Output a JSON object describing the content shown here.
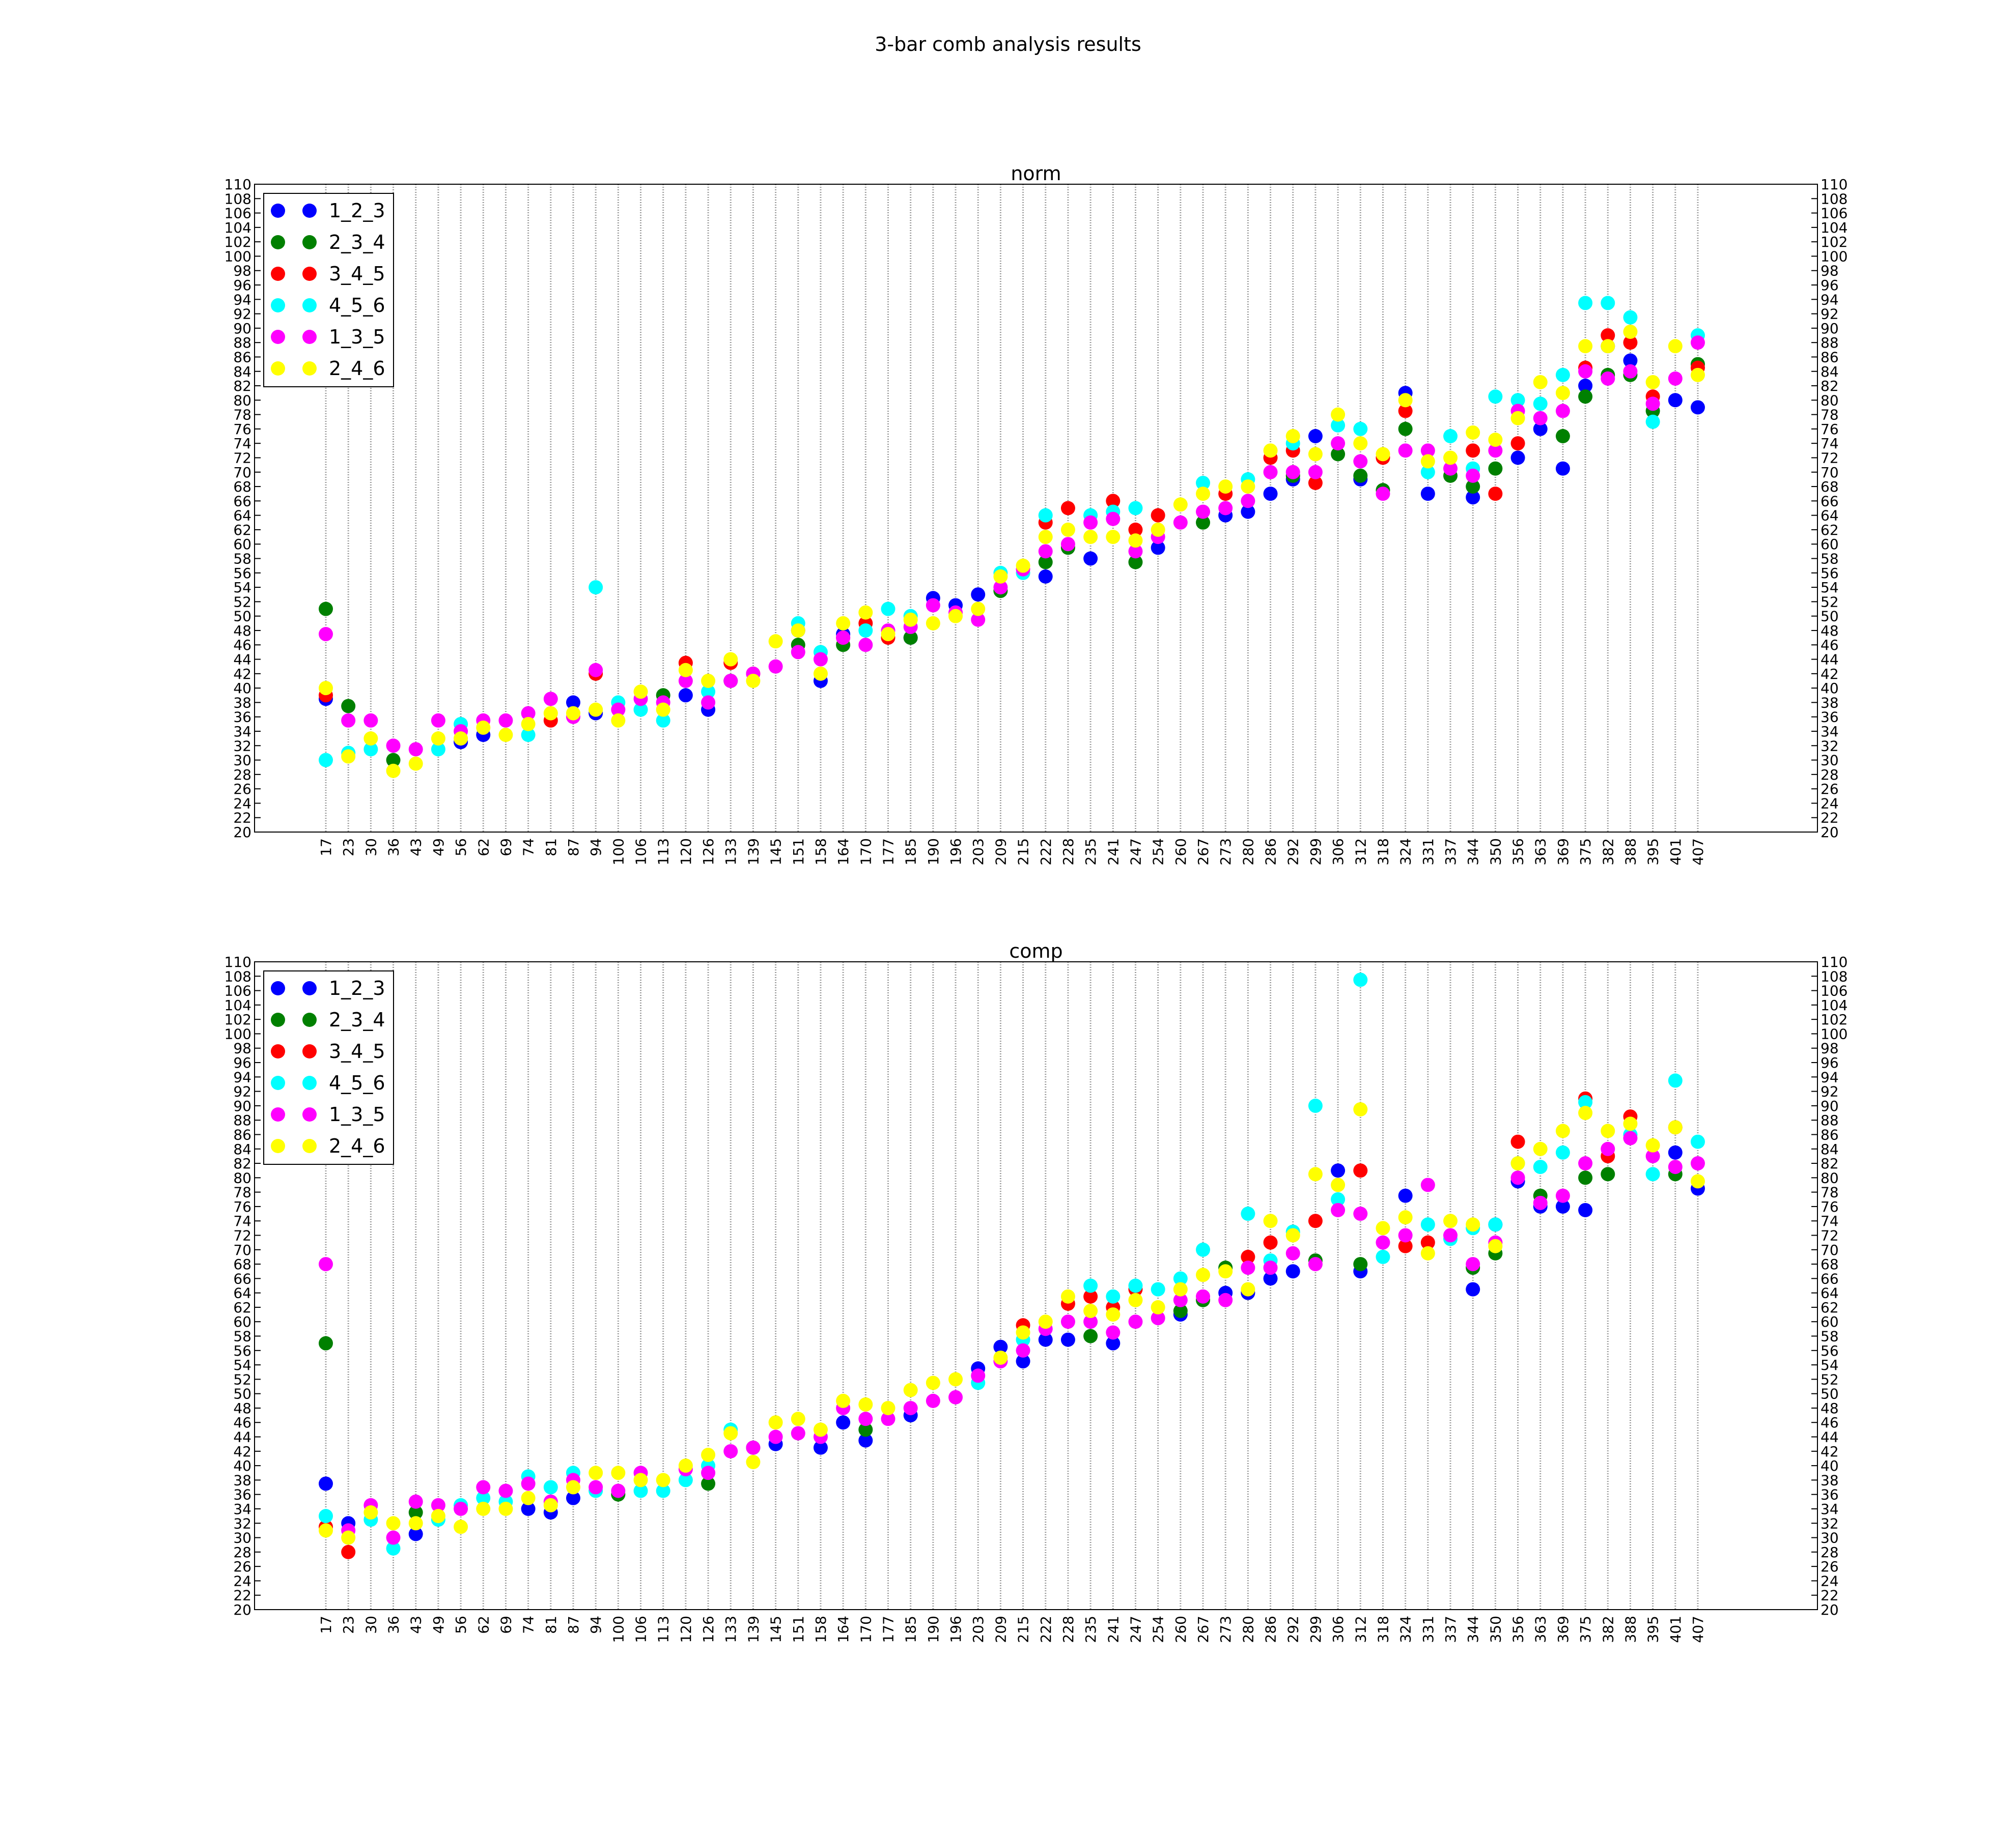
{
  "figure_title": "3-bar comb analysis results",
  "chart_data": [
    {
      "type": "scatter",
      "title": "norm",
      "xlabel": "",
      "ylabel": "",
      "ylim": [
        20,
        110
      ],
      "yticks_step": 2,
      "grid": "vertical lines at each category",
      "legend_position": "upper-left",
      "categories": [
        "17",
        "23",
        "30",
        "36",
        "43",
        "49",
        "56",
        "62",
        "69",
        "74",
        "81",
        "87",
        "94",
        "100",
        "106",
        "113",
        "120",
        "126",
        "133",
        "139",
        "145",
        "151",
        "158",
        "164",
        "170",
        "177",
        "185",
        "190",
        "196",
        "203",
        "209",
        "215",
        "222",
        "228",
        "235",
        "241",
        "247",
        "254",
        "260",
        "267",
        "273",
        "280",
        "286",
        "292",
        "299",
        "306",
        "312",
        "318",
        "324",
        "331",
        "337",
        "344",
        "350",
        "356",
        "363",
        "369",
        "375",
        "382",
        "388",
        "395",
        "401",
        "407"
      ],
      "series": [
        {
          "name": "1_2_3",
          "color": "#0000ff",
          "values": [
            38.5,
            null,
            null,
            null,
            null,
            null,
            32.5,
            33.5,
            null,
            null,
            null,
            38,
            36.5,
            null,
            null,
            null,
            39,
            37,
            null,
            null,
            null,
            48,
            41,
            47.5,
            null,
            null,
            47,
            52.5,
            51.5,
            53,
            null,
            null,
            55.5,
            null,
            58,
            null,
            null,
            59.5,
            null,
            null,
            64,
            64.5,
            67,
            69,
            75,
            null,
            69,
            null,
            81,
            67,
            null,
            66.5,
            null,
            72,
            76,
            70.5,
            82,
            87.5,
            85.5,
            null,
            80,
            79
          ]
        },
        {
          "name": "2_3_4",
          "color": "#008000",
          "values": [
            51,
            37.5,
            null,
            30,
            null,
            null,
            null,
            null,
            null,
            null,
            null,
            null,
            null,
            null,
            null,
            39,
            null,
            null,
            41,
            null,
            null,
            46,
            null,
            46,
            null,
            null,
            47,
            null,
            null,
            null,
            53.5,
            null,
            57.5,
            59.5,
            null,
            null,
            57.5,
            null,
            null,
            63,
            null,
            null,
            null,
            69.5,
            null,
            72.5,
            69.5,
            67.5,
            76,
            null,
            69.5,
            68,
            70.5,
            null,
            null,
            75,
            80.5,
            83.5,
            83.5,
            78.5,
            null,
            85
          ]
        },
        {
          "name": "3_4_5",
          "color": "#ff0000",
          "values": [
            39,
            null,
            null,
            null,
            null,
            null,
            null,
            null,
            null,
            null,
            35.5,
            null,
            42,
            null,
            null,
            null,
            43.5,
            null,
            43.5,
            42,
            null,
            null,
            null,
            47,
            49,
            47,
            null,
            null,
            null,
            null,
            null,
            null,
            63,
            65,
            null,
            66,
            62,
            64,
            null,
            null,
            67,
            null,
            72,
            73,
            68.5,
            null,
            null,
            72,
            78.5,
            null,
            null,
            73,
            67,
            74,
            null,
            null,
            84.5,
            89,
            88,
            80.5,
            null,
            84.5
          ]
        },
        {
          "name": "4_5_6",
          "color": "#00ffff",
          "values": [
            30,
            31,
            31.5,
            null,
            null,
            31.5,
            35,
            null,
            null,
            33.5,
            null,
            null,
            54,
            38,
            37,
            35.5,
            null,
            39.5,
            null,
            null,
            null,
            49,
            45,
            null,
            48,
            51,
            50,
            null,
            null,
            null,
            56,
            56,
            64,
            null,
            64,
            64.5,
            65,
            null,
            null,
            68.5,
            null,
            69,
            null,
            74,
            null,
            76.5,
            76,
            null,
            null,
            70,
            75,
            70.5,
            80.5,
            80,
            79.5,
            83.5,
            93.5,
            93.5,
            91.5,
            77,
            null,
            89
          ]
        },
        {
          "name": "1_3_5",
          "color": "#ff00ff",
          "values": [
            47.5,
            35.5,
            35.5,
            32,
            31.5,
            35.5,
            34,
            35.5,
            35.5,
            36.5,
            38.5,
            36,
            42.5,
            37,
            38.5,
            38,
            41,
            38,
            41,
            42,
            43,
            45,
            44,
            47,
            46,
            48,
            48.5,
            51.5,
            50.5,
            49.5,
            54,
            56.5,
            59,
            60,
            63,
            63.5,
            59,
            61,
            63,
            64.5,
            65,
            66,
            70,
            70,
            70,
            74,
            71.5,
            67,
            73,
            73,
            70.5,
            69.5,
            73,
            78.5,
            77.5,
            78.5,
            84,
            83,
            84,
            79.5,
            83,
            88
          ]
        },
        {
          "name": "2_4_6",
          "color": "#ffff00",
          "values": [
            40,
            30.5,
            33,
            28.5,
            29.5,
            33,
            33,
            34.5,
            33.5,
            35,
            36.5,
            36.5,
            37,
            35.5,
            39.5,
            37,
            42.5,
            41,
            44,
            41,
            46.5,
            48,
            42,
            49,
            50.5,
            47.5,
            49.5,
            49,
            50,
            51,
            55.5,
            57,
            61,
            62,
            61,
            61,
            60.5,
            62,
            65.5,
            67,
            68,
            68,
            73,
            75,
            72.5,
            78,
            74,
            72.5,
            80,
            71.5,
            72,
            75.5,
            74.5,
            77.5,
            82.5,
            81,
            87.5,
            87.5,
            89.5,
            82.5,
            87.5,
            83.5
          ]
        }
      ]
    },
    {
      "type": "scatter",
      "title": "comp",
      "xlabel": "",
      "ylabel": "",
      "ylim": [
        20,
        110
      ],
      "yticks_step": 2,
      "grid": "vertical lines at each category",
      "legend_position": "upper-left",
      "categories": [
        "17",
        "23",
        "30",
        "36",
        "43",
        "49",
        "56",
        "62",
        "69",
        "74",
        "81",
        "87",
        "94",
        "100",
        "106",
        "113",
        "120",
        "126",
        "133",
        "139",
        "145",
        "151",
        "158",
        "164",
        "170",
        "177",
        "185",
        "190",
        "196",
        "203",
        "209",
        "215",
        "222",
        "228",
        "235",
        "241",
        "247",
        "254",
        "260",
        "267",
        "273",
        "280",
        "286",
        "292",
        "299",
        "306",
        "312",
        "318",
        "324",
        "331",
        "337",
        "344",
        "350",
        "356",
        "363",
        "369",
        "375",
        "382",
        "388",
        "395",
        "401",
        "407"
      ],
      "series": [
        {
          "name": "1_2_3",
          "color": "#0000ff",
          "values": [
            37.5,
            32,
            null,
            null,
            30.5,
            null,
            null,
            null,
            null,
            34,
            33.5,
            35.5,
            null,
            null,
            null,
            null,
            null,
            null,
            null,
            null,
            43,
            null,
            42.5,
            46,
            43.5,
            null,
            47,
            null,
            null,
            53.5,
            56.5,
            54.5,
            57.5,
            57.5,
            null,
            57,
            null,
            null,
            61,
            null,
            64,
            64,
            66,
            67,
            null,
            81,
            67,
            null,
            77.5,
            null,
            null,
            64.5,
            73.5,
            79.5,
            76,
            76,
            75.5,
            null,
            null,
            null,
            83.5,
            78.5
          ]
        },
        {
          "name": "2_3_4",
          "color": "#008000",
          "values": [
            57,
            null,
            null,
            null,
            33.5,
            null,
            null,
            null,
            null,
            null,
            null,
            null,
            null,
            36,
            null,
            null,
            null,
            37.5,
            null,
            42.5,
            null,
            null,
            null,
            null,
            45,
            null,
            null,
            null,
            null,
            null,
            null,
            null,
            null,
            null,
            58,
            null,
            null,
            null,
            61.5,
            63,
            67.5,
            null,
            null,
            null,
            68.5,
            null,
            68,
            null,
            null,
            null,
            null,
            67.5,
            69.5,
            null,
            77.5,
            null,
            80,
            80.5,
            null,
            null,
            80.5,
            null
          ]
        },
        {
          "name": "3_4_5",
          "color": "#ff0000",
          "values": [
            31.5,
            28,
            null,
            null,
            null,
            null,
            null,
            null,
            null,
            null,
            null,
            null,
            null,
            null,
            null,
            null,
            null,
            null,
            null,
            null,
            null,
            null,
            null,
            null,
            null,
            null,
            null,
            null,
            null,
            null,
            null,
            59.5,
            null,
            62.5,
            63.5,
            62,
            64.5,
            null,
            null,
            null,
            null,
            69,
            71,
            null,
            74,
            null,
            81,
            null,
            70.5,
            71,
            null,
            null,
            null,
            85,
            null,
            null,
            91,
            83,
            88.5,
            null,
            87,
            null
          ]
        },
        {
          "name": "4_5_6",
          "color": "#00ffff",
          "values": [
            33,
            null,
            32.5,
            28.5,
            null,
            32.5,
            34.5,
            35.5,
            35,
            38.5,
            37,
            39,
            36.5,
            null,
            36.5,
            36.5,
            38,
            40,
            45,
            null,
            null,
            null,
            null,
            null,
            null,
            null,
            null,
            null,
            null,
            51.5,
            null,
            57.5,
            null,
            null,
            65,
            63.5,
            65,
            64.5,
            66,
            70,
            null,
            75,
            68.5,
            72.5,
            90,
            77,
            107.5,
            69,
            null,
            73.5,
            71.5,
            73,
            73.5,
            82,
            81.5,
            83.5,
            90.5,
            null,
            86,
            80.5,
            93.5,
            85
          ]
        },
        {
          "name": "1_3_5",
          "color": "#ff00ff",
          "values": [
            68,
            31,
            34.5,
            30,
            35,
            34.5,
            34,
            37,
            36.5,
            37.5,
            35,
            38,
            37,
            36.5,
            39,
            null,
            39.5,
            39,
            42,
            42.5,
            44,
            44.5,
            44,
            48,
            46.5,
            46.5,
            48,
            49,
            49.5,
            52.5,
            54.5,
            56,
            59,
            60,
            60,
            58.5,
            60,
            60.5,
            63,
            63.5,
            63,
            67.5,
            67.5,
            69.5,
            68,
            75.5,
            75,
            71,
            72,
            79,
            72,
            68,
            71,
            80,
            76.5,
            77.5,
            82,
            84,
            85.5,
            83,
            81.5,
            82
          ]
        },
        {
          "name": "2_4_6",
          "color": "#ffff00",
          "values": [
            31,
            30,
            33.5,
            32,
            32,
            33,
            31.5,
            34,
            34,
            35.5,
            34.5,
            37,
            39,
            39,
            38,
            38,
            40,
            41.5,
            44.5,
            40.5,
            46,
            46.5,
            45,
            49,
            48.5,
            48,
            50.5,
            51.5,
            52,
            null,
            55,
            58.5,
            60,
            63.5,
            61.5,
            61,
            63,
            62,
            64.5,
            66.5,
            67,
            64.5,
            74,
            72,
            80.5,
            79,
            89.5,
            73,
            74.5,
            69.5,
            74,
            73.5,
            70.5,
            82,
            84,
            86.5,
            89,
            86.5,
            87.5,
            84.5,
            87,
            79.5
          ]
        }
      ]
    }
  ]
}
